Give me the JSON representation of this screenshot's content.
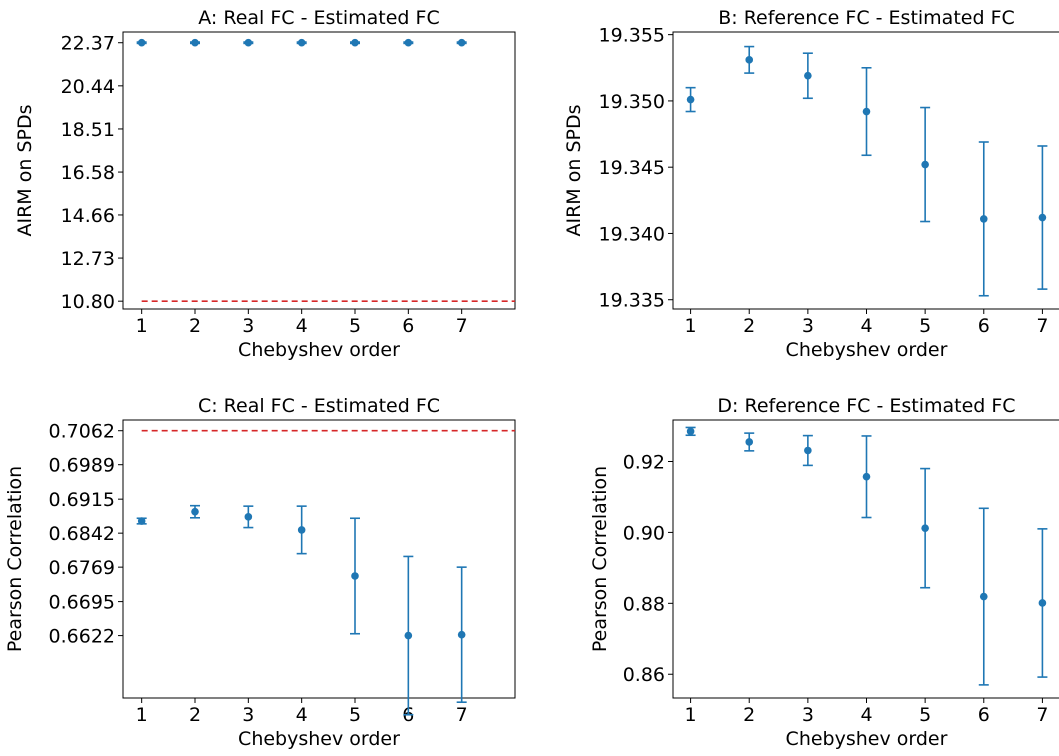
{
  "chart_data": [
    {
      "type": "scatter",
      "title": "A: Real FC - Estimated FC",
      "xlabel": "Chebyshev order",
      "ylabel": "AIRM on SPDs",
      "x_ticks": [
        "1",
        "2",
        "3",
        "4",
        "5",
        "6",
        "7"
      ],
      "y_ticks": [
        "22.37",
        "20.44",
        "18.51",
        "16.58",
        "14.66",
        "12.73",
        "10.80"
      ],
      "ylim": [
        10.45,
        22.85
      ],
      "xlim": [
        0.65,
        8.0
      ],
      "series": [
        {
          "x": [
            1,
            2,
            3,
            4,
            5,
            6,
            7
          ],
          "y": [
            22.37,
            22.37,
            22.37,
            22.37,
            22.37,
            22.37,
            22.37
          ],
          "err": [
            0.03,
            0.03,
            0.03,
            0.03,
            0.03,
            0.03,
            0.03
          ],
          "color": "#1f77b4"
        }
      ],
      "reference_line": {
        "y": 10.8,
        "color": "#d62728",
        "style": "dashed",
        "x_range": [
          1,
          8
        ]
      }
    },
    {
      "type": "scatter",
      "title": "B: Reference FC - Estimated FC",
      "xlabel": "Chebyshev order",
      "ylabel": "AIRM on SPDs",
      "x_ticks": [
        "1",
        "2",
        "3",
        "4",
        "5",
        "6",
        "7"
      ],
      "y_ticks": [
        "19.355",
        "19.350",
        "19.345",
        "19.340",
        "19.335"
      ],
      "ylim": [
        19.3343,
        19.3552
      ],
      "xlim": [
        0.7,
        7.3
      ],
      "series": [
        {
          "x": [
            1,
            2,
            3,
            4,
            5,
            6,
            7
          ],
          "y": [
            19.3501,
            19.3531,
            19.3519,
            19.3492,
            19.3452,
            19.3411,
            19.3412
          ],
          "err": [
            0.0009,
            0.001,
            0.0017,
            0.0033,
            0.0043,
            0.0058,
            0.0054
          ],
          "color": "#1f77b4"
        }
      ]
    },
    {
      "type": "scatter",
      "title": "C: Real FC - Estimated FC",
      "xlabel": "Chebyshev order",
      "ylabel": "Pearson Correlation",
      "x_ticks": [
        "1",
        "2",
        "3",
        "4",
        "5",
        "6",
        "7"
      ],
      "y_ticks": [
        "0.7062",
        "0.6989",
        "0.6915",
        "0.6842",
        "0.6769",
        "0.6695",
        "0.6622"
      ],
      "ylim": [
        0.6488,
        0.7085
      ],
      "xlim": [
        0.65,
        8.0
      ],
      "series": [
        {
          "x": [
            1,
            2,
            3,
            4,
            5,
            6,
            7
          ],
          "y": [
            0.6868,
            0.6888,
            0.6877,
            0.6849,
            0.675,
            0.6622,
            0.6624
          ],
          "err": [
            0.0006,
            0.0013,
            0.0023,
            0.0051,
            0.0124,
            0.017,
            0.0145
          ],
          "color": "#1f77b4"
        }
      ],
      "reference_line": {
        "y": 0.7062,
        "color": "#d62728",
        "style": "dashed",
        "x_range": [
          1,
          8
        ]
      }
    },
    {
      "type": "scatter",
      "title": "D: Reference FC - Estimated FC",
      "xlabel": "Chebyshev order",
      "ylabel": "Pearson Correlation",
      "x_ticks": [
        "1",
        "2",
        "3",
        "4",
        "5",
        "6",
        "7"
      ],
      "y_ticks": [
        "0.92",
        "0.90",
        "0.88",
        "0.86"
      ],
      "ylim": [
        0.8533,
        0.9317
      ],
      "xlim": [
        0.7,
        7.3
      ],
      "series": [
        {
          "x": [
            1,
            2,
            3,
            4,
            5,
            6,
            7
          ],
          "y": [
            0.9285,
            0.9255,
            0.9231,
            0.9157,
            0.9012,
            0.8819,
            0.8801
          ],
          "err": [
            0.0011,
            0.0025,
            0.0042,
            0.0115,
            0.0168,
            0.0249,
            0.0209
          ],
          "color": "#1f77b4"
        }
      ]
    }
  ]
}
